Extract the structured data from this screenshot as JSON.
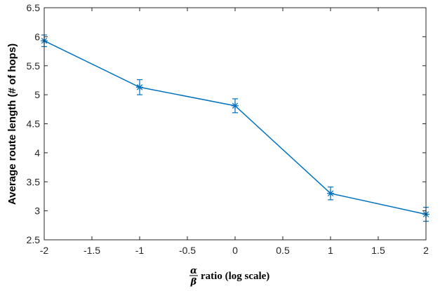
{
  "chart_data": {
    "type": "line",
    "title": "",
    "xlabel": {
      "numerator": "α",
      "denominator": "β",
      "text": "ratio (log scale)"
    },
    "ylabel": "Average route length (# of hops)",
    "xlim": [
      -2,
      2
    ],
    "ylim": [
      2.5,
      6.5
    ],
    "x_ticks": [
      -2,
      -1.5,
      -1,
      -0.5,
      0,
      0.5,
      1,
      1.5,
      2
    ],
    "x_tick_labels": [
      "-2",
      "-1.5",
      "-1",
      "-0.5",
      "0",
      "0.5",
      "1",
      "1.5",
      "2"
    ],
    "y_ticks": [
      2.5,
      3,
      3.5,
      4,
      4.5,
      5,
      5.5,
      6,
      6.5
    ],
    "y_tick_labels": [
      "2.5",
      "3",
      "3.5",
      "4",
      "4.5",
      "5",
      "5.5",
      "6",
      "6.5"
    ],
    "grid": false,
    "series": [
      {
        "color": "#0072BD",
        "marker": "asterisk",
        "x": [
          -2,
          -1,
          0,
          1,
          2
        ],
        "y": [
          5.93,
          5.13,
          4.81,
          3.3,
          2.94
        ],
        "error": [
          0.1,
          0.13,
          0.12,
          0.11,
          0.12
        ]
      }
    ]
  }
}
